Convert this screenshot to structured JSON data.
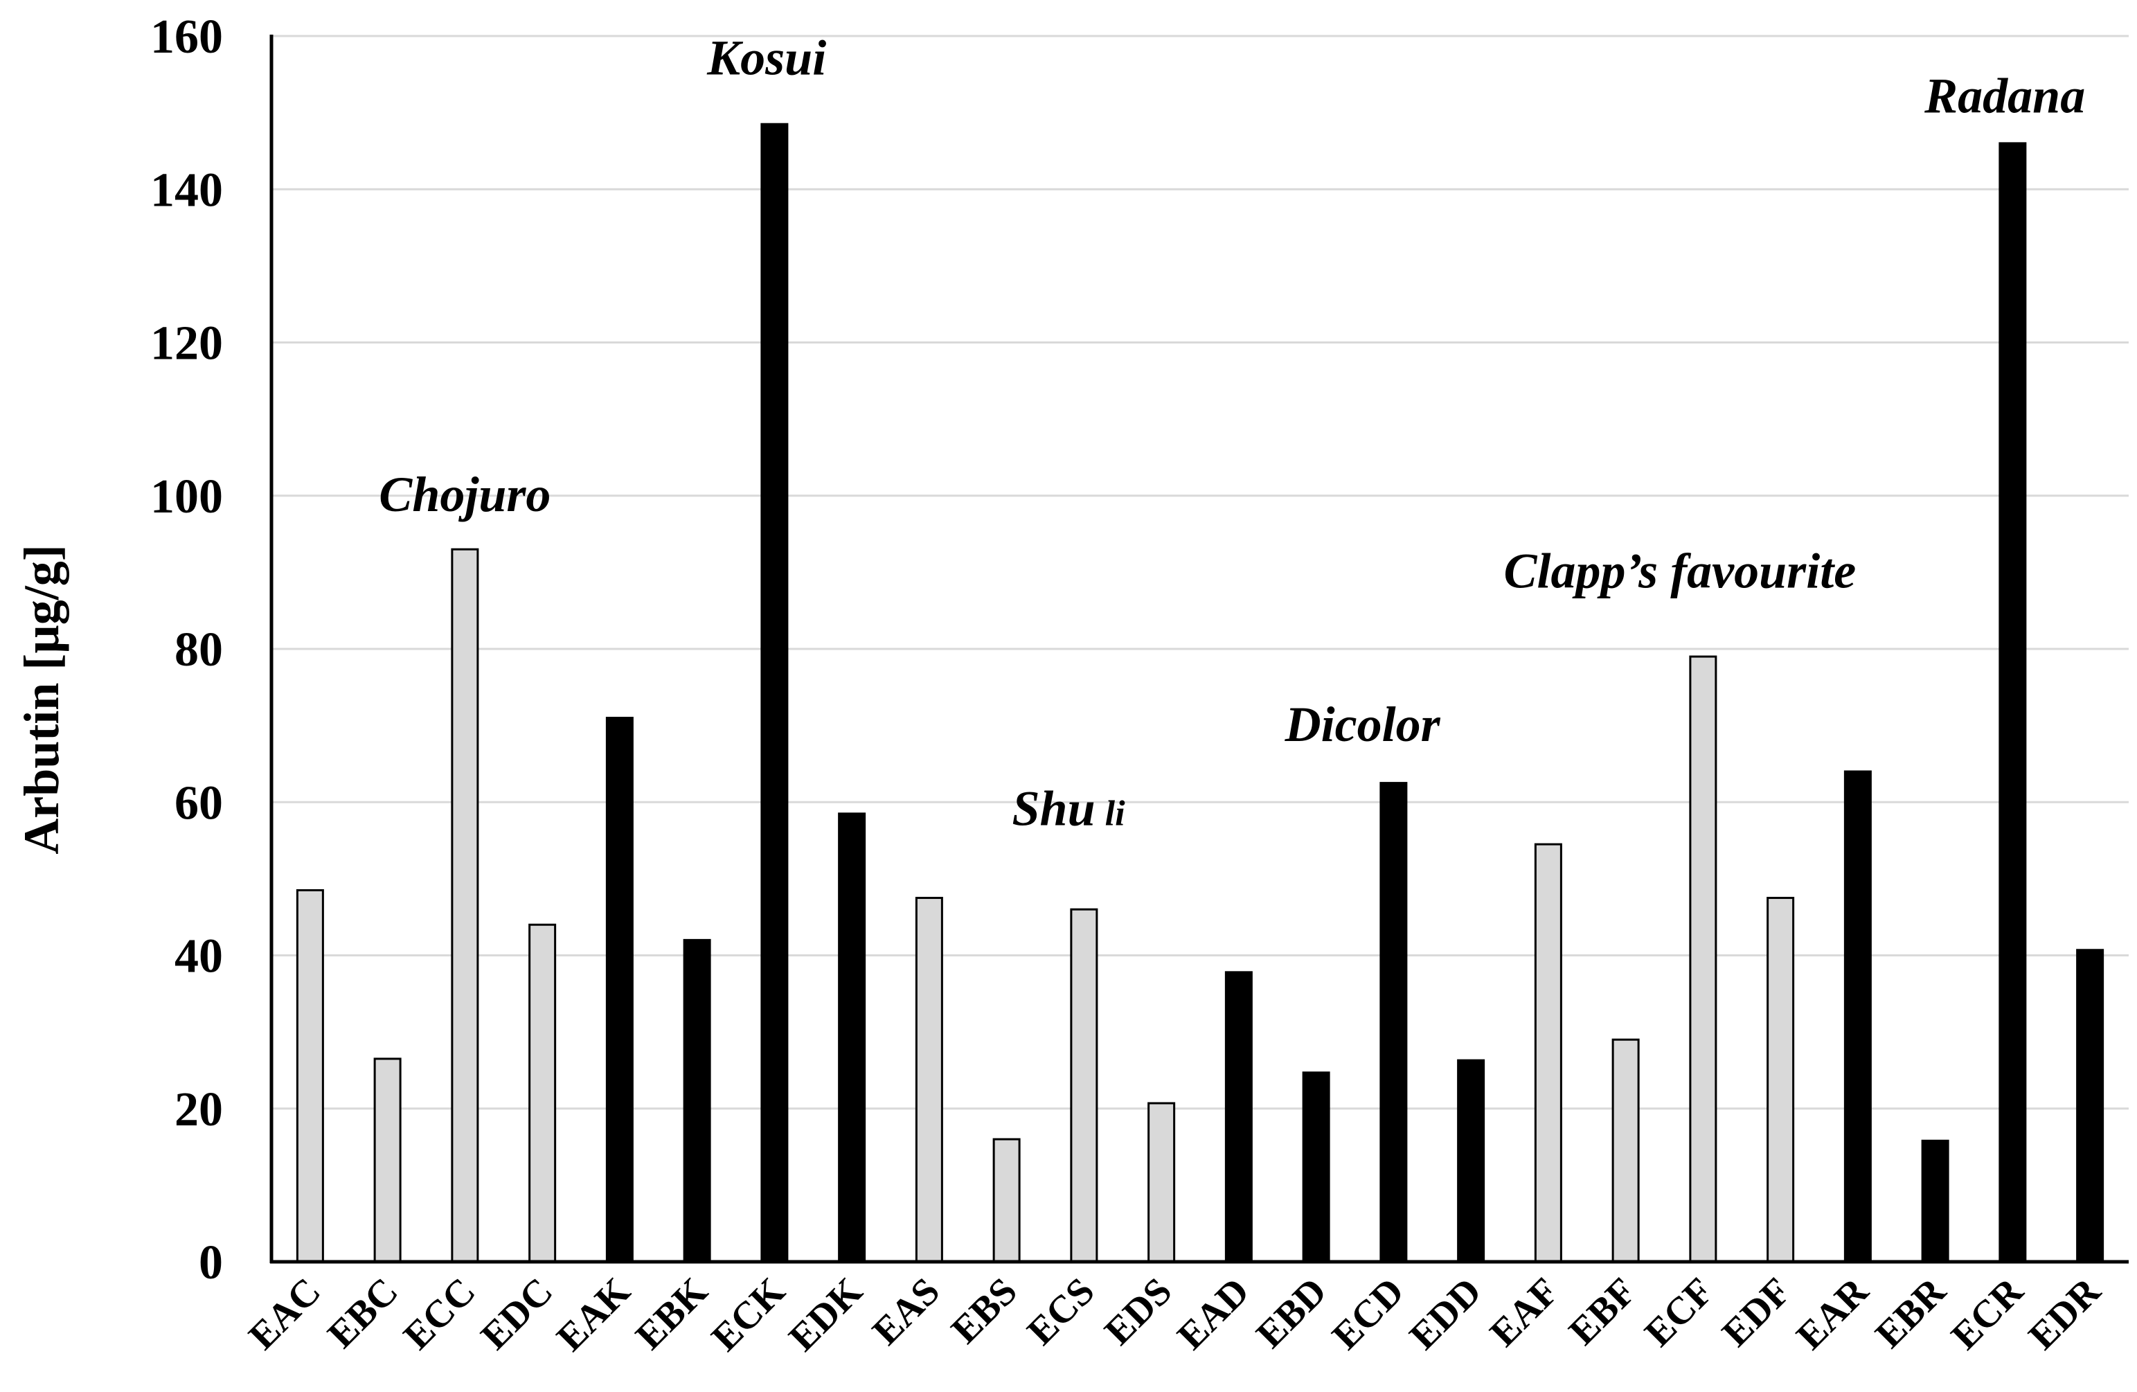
{
  "chart_data": {
    "type": "bar",
    "ylabel": "Arbutin [µg/g]",
    "xlabel": "",
    "ylim": [
      0,
      160
    ],
    "yticks": [
      "0",
      "20",
      "40",
      "60",
      "80",
      "100",
      "120",
      "140",
      "160"
    ],
    "grid": true,
    "legend": "none",
    "colors": {
      "light": "#d9d9d9",
      "dark": "#000000",
      "outline": "#000000",
      "grid": "#d9d9d9",
      "axis": "#000000"
    },
    "categories": [
      "EAC",
      "EBC",
      "ECC",
      "EDC",
      "EAK",
      "EBK",
      "ECK",
      "EDK",
      "EAS",
      "EBS",
      "ECS",
      "EDS",
      "EAD",
      "EBD",
      "ECD",
      "EDD",
      "EAF",
      "EBF",
      "ECF",
      "EDF",
      "EAR",
      "EBR",
      "ECR",
      "EDR"
    ],
    "values": [
      48.5,
      26.5,
      93,
      44,
      71,
      42,
      148.5,
      58.5,
      47.5,
      16,
      46,
      20.7,
      37.8,
      24.7,
      62.5,
      26.3,
      54.5,
      29,
      79,
      47.5,
      64,
      15.8,
      146,
      40.7
    ],
    "bar_colors": [
      "light",
      "light",
      "light",
      "light",
      "dark",
      "dark",
      "dark",
      "dark",
      "light",
      "light",
      "light",
      "light",
      "dark",
      "dark",
      "dark",
      "dark",
      "light",
      "light",
      "light",
      "light",
      "dark",
      "dark",
      "dark",
      "dark"
    ],
    "annotations": [
      {
        "text": "Chojuro",
        "suffix": "",
        "anchor_index": 2.5,
        "y": 98
      },
      {
        "text": "Kosui",
        "suffix": "",
        "anchor_index": 6.4,
        "y": 155
      },
      {
        "text": "Shu",
        "suffix": "li",
        "anchor_index": 10.3,
        "y": 57
      },
      {
        "text": "Dicolor",
        "suffix": "",
        "anchor_index": 14.1,
        "y": 68
      },
      {
        "text": "Clapp’s favourite",
        "suffix": "",
        "anchor_index": 18.2,
        "y": 88
      },
      {
        "text": "Radana",
        "suffix": "",
        "anchor_index": 22.4,
        "y": 150
      }
    ]
  }
}
